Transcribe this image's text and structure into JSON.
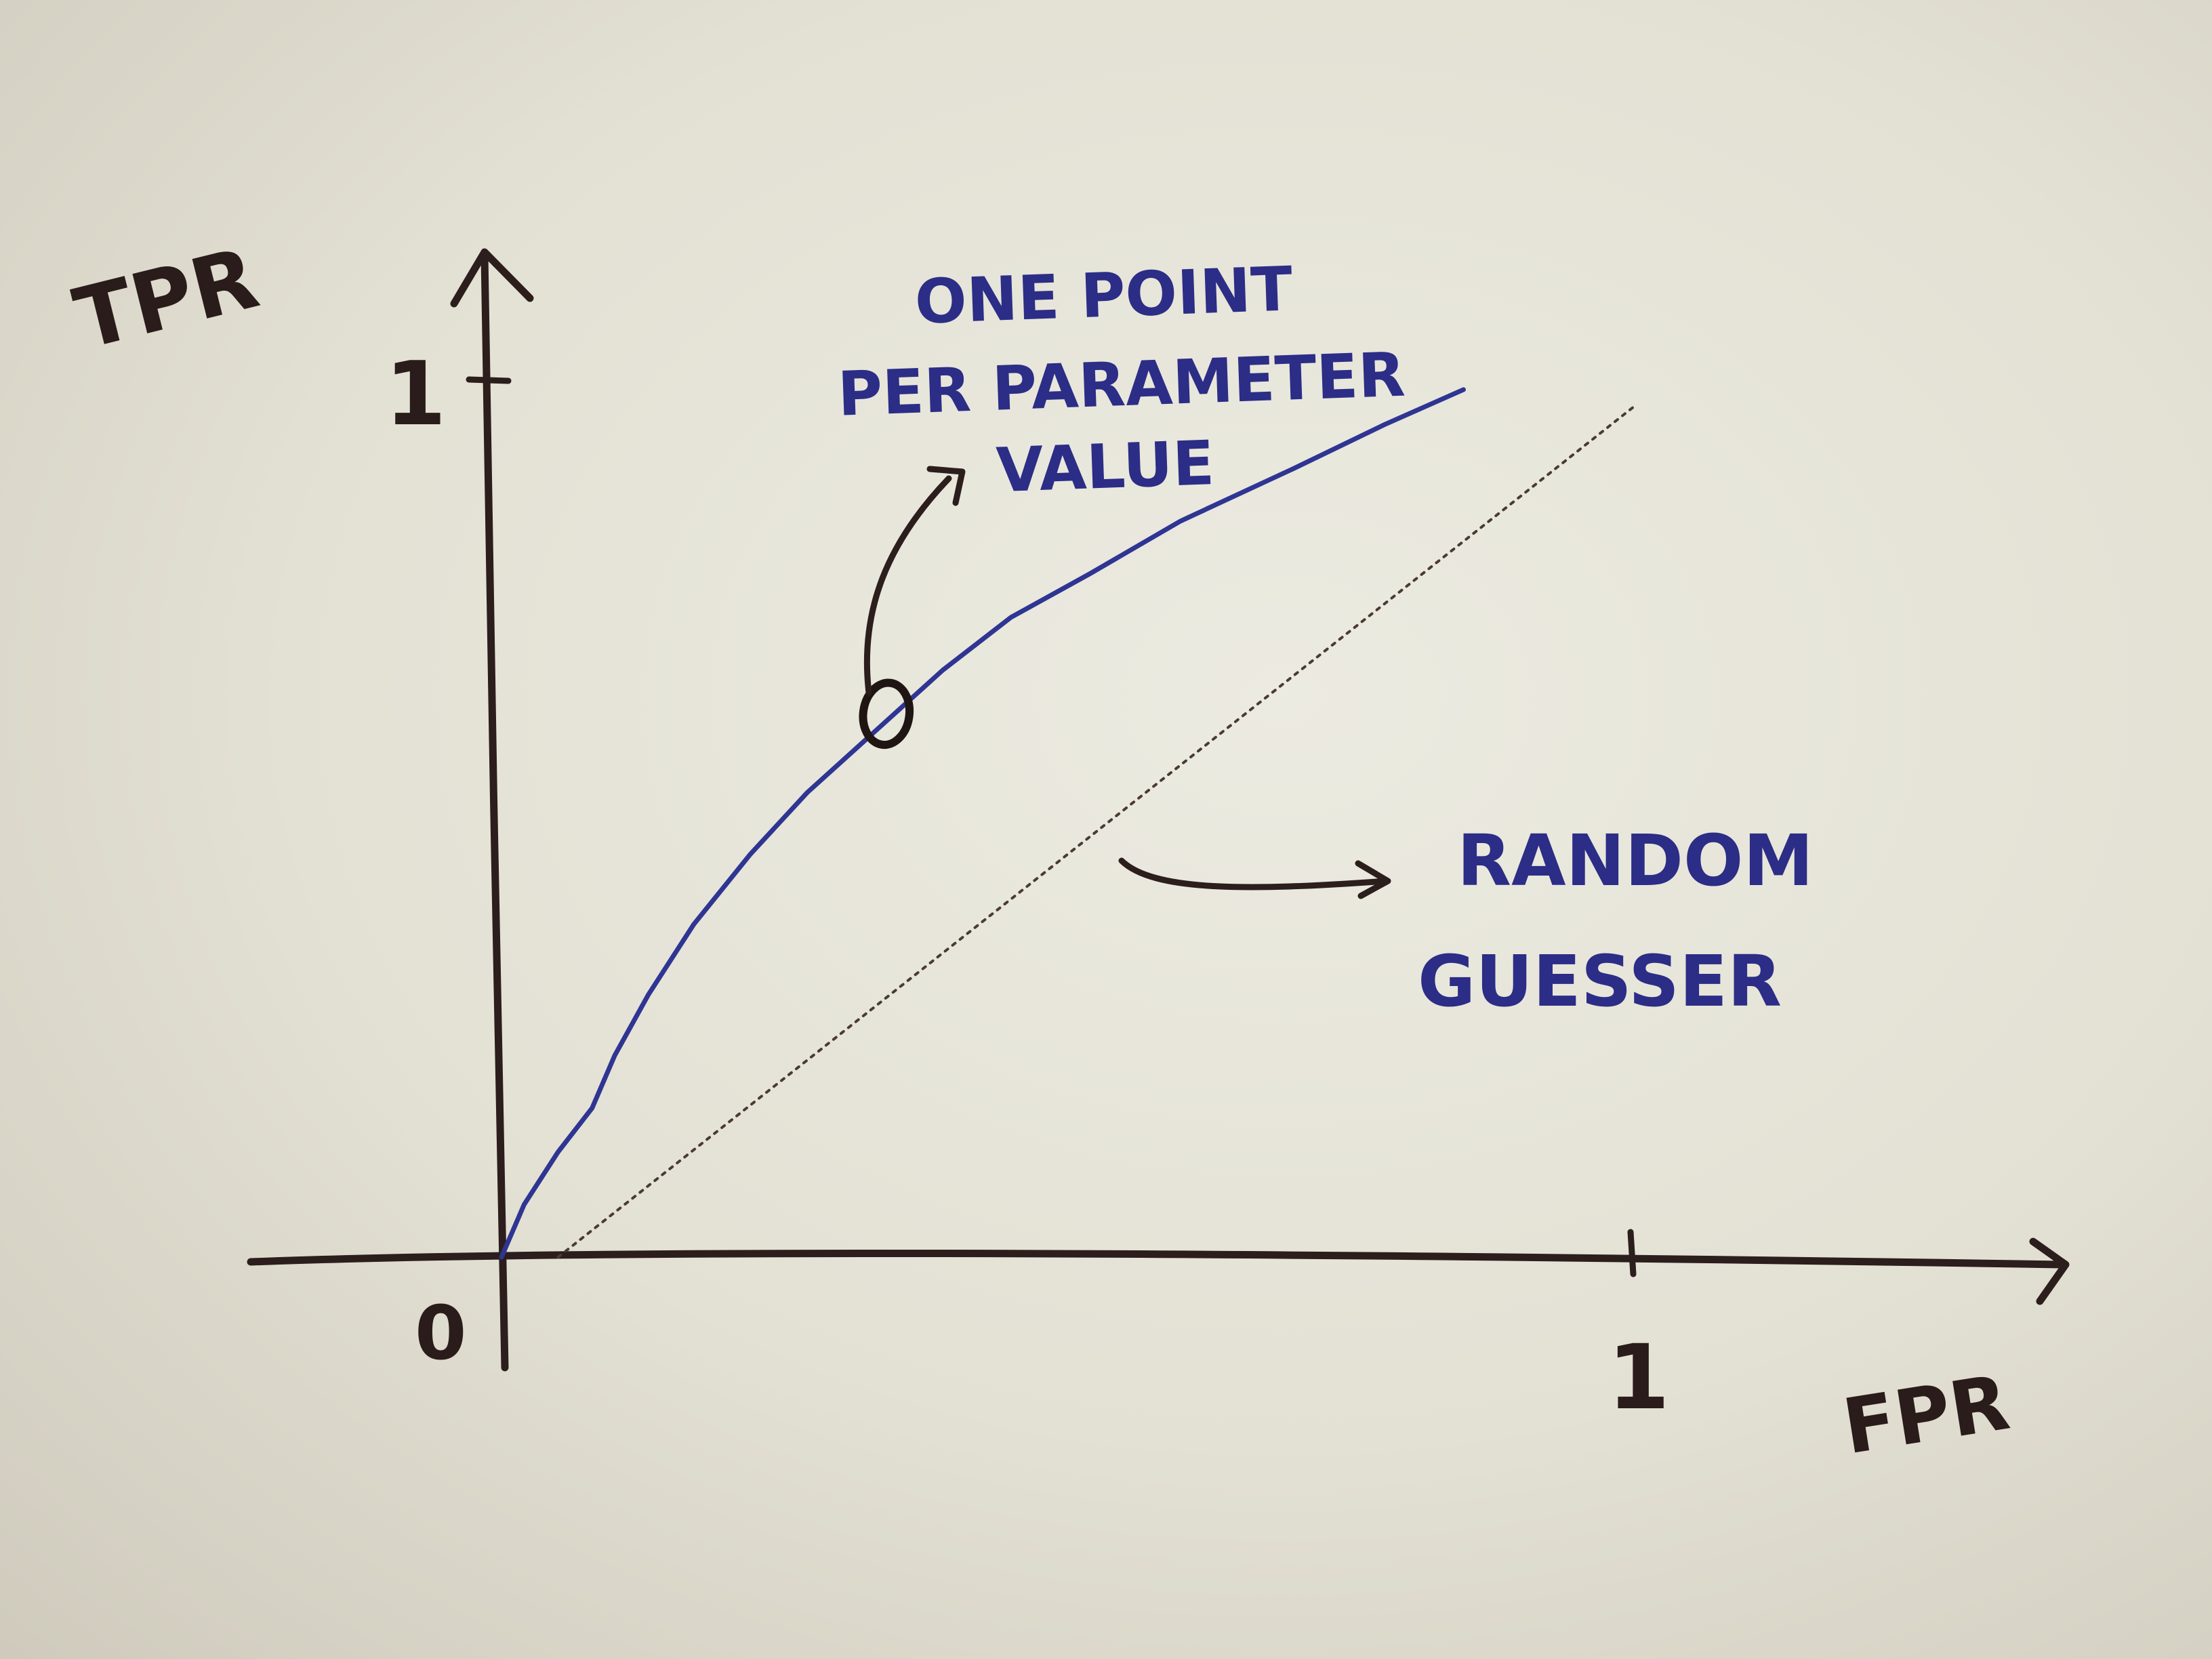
{
  "chart_data": {
    "type": "line",
    "xlabel": "FPR",
    "ylabel": "TPR",
    "xlim": [
      0,
      1.36
    ],
    "ylim": [
      0,
      1.02
    ],
    "x_ticks": [
      {
        "value": 0,
        "label": "0"
      },
      {
        "value": 1,
        "label": "1"
      }
    ],
    "y_ticks": [
      {
        "value": 1,
        "label": "1"
      }
    ],
    "series": [
      {
        "style": "solid",
        "color": "#2f3592",
        "x": [
          0.0,
          0.02,
          0.05,
          0.08,
          0.1,
          0.13,
          0.17,
          0.22,
          0.27,
          0.33,
          0.39,
          0.45,
          0.52,
          0.6,
          0.7,
          0.78,
          0.85
        ],
        "y": [
          0.0,
          0.06,
          0.12,
          0.17,
          0.23,
          0.3,
          0.38,
          0.46,
          0.53,
          0.6,
          0.67,
          0.73,
          0.78,
          0.84,
          0.9,
          0.95,
          0.99
        ]
      },
      {
        "style": "dotted",
        "color": "#4a3a36",
        "x": [
          0.05,
          1.0
        ],
        "y": [
          0.0,
          0.97
        ]
      }
    ],
    "highlight_point": {
      "x": 0.34,
      "y": 0.62
    },
    "annotations": [
      {
        "lines": [
          "ONE POINT",
          "PER PARAMETER",
          "VALUE"
        ]
      },
      {
        "lines": [
          "RANDOM",
          "GUESSER"
        ]
      }
    ],
    "colors": {
      "axes": "#2c1e1c",
      "curve": "#2f3592",
      "annotation_text": "#2c2d86"
    }
  }
}
